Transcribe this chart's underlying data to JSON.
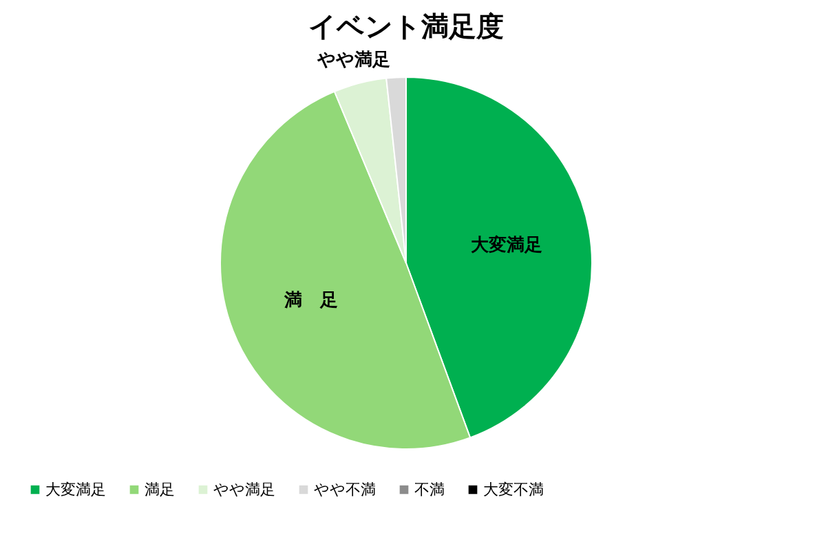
{
  "chart_data": {
    "type": "pie",
    "title": "イベント満足度",
    "categories": [
      "大変満足",
      "満足",
      "やや満足",
      "やや不満",
      "不満",
      "大変不満"
    ],
    "values": [
      44.4,
      49.3,
      4.6,
      1.7,
      0,
      0
    ],
    "colors": [
      "#00b050",
      "#92d878",
      "#dcf2d4",
      "#d9d9d9",
      "#8c8c8c",
      "#000000"
    ],
    "value_labels": [
      "大変満足",
      "満　足",
      "やや満足",
      null,
      null,
      null
    ],
    "legend": "bottom"
  }
}
